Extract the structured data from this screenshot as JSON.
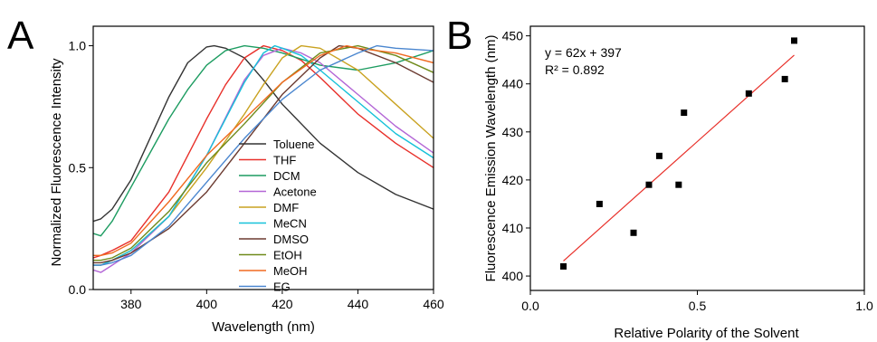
{
  "panels": {
    "a_letter": "A",
    "b_letter": "B"
  },
  "chart_data": [
    {
      "type": "line",
      "panel": "A",
      "xlabel": "Wavelength (nm)",
      "ylabel": "Normalized Fluorescence Intensity",
      "xlim": [
        370,
        460
      ],
      "ylim": [
        0.0,
        1.08
      ],
      "x_ticks": [
        380,
        400,
        420,
        440,
        460
      ],
      "y_ticks": [
        0.0,
        0.5,
        1.0
      ],
      "y_tick_labels": [
        "0.0",
        "0.5",
        "1.0"
      ],
      "legend_position": "center-right",
      "series": [
        {
          "name": "Toluene",
          "color": "#333333",
          "x": [
            370,
            372,
            375,
            380,
            385,
            390,
            395,
            400,
            402,
            405,
            410,
            415,
            420,
            430,
            440,
            450,
            460
          ],
          "y": [
            0.28,
            0.29,
            0.33,
            0.45,
            0.62,
            0.79,
            0.93,
            0.995,
            1.0,
            0.99,
            0.95,
            0.86,
            0.76,
            0.6,
            0.48,
            0.39,
            0.33
          ]
        },
        {
          "name": "THF",
          "color": "#e8302a",
          "x": [
            370,
            372,
            375,
            380,
            390,
            400,
            405,
            410,
            415,
            420,
            425,
            430,
            440,
            450,
            460
          ],
          "y": [
            0.13,
            0.14,
            0.16,
            0.2,
            0.4,
            0.7,
            0.84,
            0.95,
            1.0,
            0.98,
            0.94,
            0.87,
            0.72,
            0.6,
            0.5
          ]
        },
        {
          "name": "DCM",
          "color": "#1d9c61",
          "x": [
            370,
            372,
            375,
            380,
            385,
            390,
            395,
            400,
            405,
            410,
            415,
            420,
            430,
            440,
            450,
            460
          ],
          "y": [
            0.23,
            0.22,
            0.28,
            0.42,
            0.56,
            0.7,
            0.82,
            0.92,
            0.98,
            1.0,
            0.99,
            0.97,
            0.92,
            0.9,
            0.93,
            0.98
          ]
        },
        {
          "name": "Acetone",
          "color": "#b366d6",
          "x": [
            370,
            372,
            375,
            380,
            390,
            400,
            410,
            415,
            420,
            425,
            430,
            440,
            450,
            460
          ],
          "y": [
            0.08,
            0.07,
            0.1,
            0.15,
            0.3,
            0.55,
            0.86,
            0.96,
            0.99,
            0.97,
            0.93,
            0.8,
            0.67,
            0.56
          ]
        },
        {
          "name": "DMF",
          "color": "#c9a220",
          "x": [
            370,
            372,
            375,
            380,
            390,
            400,
            410,
            415,
            420,
            425,
            430,
            440,
            450,
            460
          ],
          "y": [
            0.1,
            0.1,
            0.12,
            0.16,
            0.3,
            0.5,
            0.72,
            0.84,
            0.95,
            1.0,
            0.99,
            0.9,
            0.76,
            0.62
          ]
        },
        {
          "name": "MeCN",
          "color": "#16c1d9",
          "x": [
            370,
            372,
            375,
            380,
            390,
            400,
            410,
            415,
            418,
            420,
            425,
            430,
            440,
            450,
            460
          ],
          "y": [
            0.1,
            0.1,
            0.12,
            0.16,
            0.3,
            0.55,
            0.85,
            0.97,
            1.0,
            0.99,
            0.96,
            0.9,
            0.77,
            0.64,
            0.54
          ]
        },
        {
          "name": "DMSO",
          "color": "#6b3a30",
          "x": [
            370,
            372,
            375,
            380,
            390,
            400,
            410,
            420,
            430,
            435,
            440,
            450,
            460
          ],
          "y": [
            0.11,
            0.11,
            0.12,
            0.15,
            0.25,
            0.4,
            0.6,
            0.8,
            0.95,
            1.0,
            0.99,
            0.93,
            0.85
          ]
        },
        {
          "name": "EtOH",
          "color": "#6f8a1a",
          "x": [
            370,
            372,
            375,
            380,
            390,
            400,
            410,
            420,
            430,
            440,
            450,
            460
          ],
          "y": [
            0.12,
            0.12,
            0.13,
            0.17,
            0.32,
            0.52,
            0.68,
            0.85,
            0.97,
            1.0,
            0.96,
            0.89
          ]
        },
        {
          "name": "MeOH",
          "color": "#f06a20",
          "x": [
            370,
            372,
            375,
            380,
            390,
            400,
            410,
            420,
            430,
            437,
            440,
            450,
            460
          ],
          "y": [
            0.14,
            0.14,
            0.15,
            0.19,
            0.36,
            0.55,
            0.7,
            0.85,
            0.96,
            1.0,
            0.99,
            0.97,
            0.93
          ]
        },
        {
          "name": "EG",
          "color": "#4a86cf",
          "x": [
            370,
            372,
            375,
            380,
            390,
            400,
            410,
            420,
            430,
            440,
            445,
            450,
            460
          ],
          "y": [
            0.1,
            0.1,
            0.11,
            0.14,
            0.26,
            0.44,
            0.62,
            0.78,
            0.9,
            0.97,
            1.0,
            0.99,
            0.98
          ]
        }
      ]
    },
    {
      "type": "scatter",
      "panel": "B",
      "xlabel": "Relative Polarity of the Solvent",
      "ylabel": "Fluorescence Emission Wavelength (nm)",
      "xlim": [
        0.0,
        1.0
      ],
      "ylim": [
        397,
        452
      ],
      "x_ticks": [
        0.0,
        0.5,
        1.0
      ],
      "x_tick_labels": [
        "0.0",
        "0.5",
        "1.0"
      ],
      "y_ticks": [
        400,
        410,
        420,
        430,
        440,
        450
      ],
      "marker_color": "#000000",
      "points": [
        {
          "x": 0.099,
          "y": 402
        },
        {
          "x": 0.207,
          "y": 415
        },
        {
          "x": 0.309,
          "y": 409
        },
        {
          "x": 0.355,
          "y": 419
        },
        {
          "x": 0.386,
          "y": 425
        },
        {
          "x": 0.444,
          "y": 419
        },
        {
          "x": 0.46,
          "y": 434
        },
        {
          "x": 0.654,
          "y": 438
        },
        {
          "x": 0.762,
          "y": 441
        },
        {
          "x": 0.79,
          "y": 449
        }
      ],
      "fit": {
        "slope": 62,
        "intercept": 397,
        "x_range": [
          0.099,
          0.79
        ],
        "color": "#e8302a",
        "equation": "y = 62x + 397",
        "r2": "R² = 0.892"
      }
    }
  ]
}
